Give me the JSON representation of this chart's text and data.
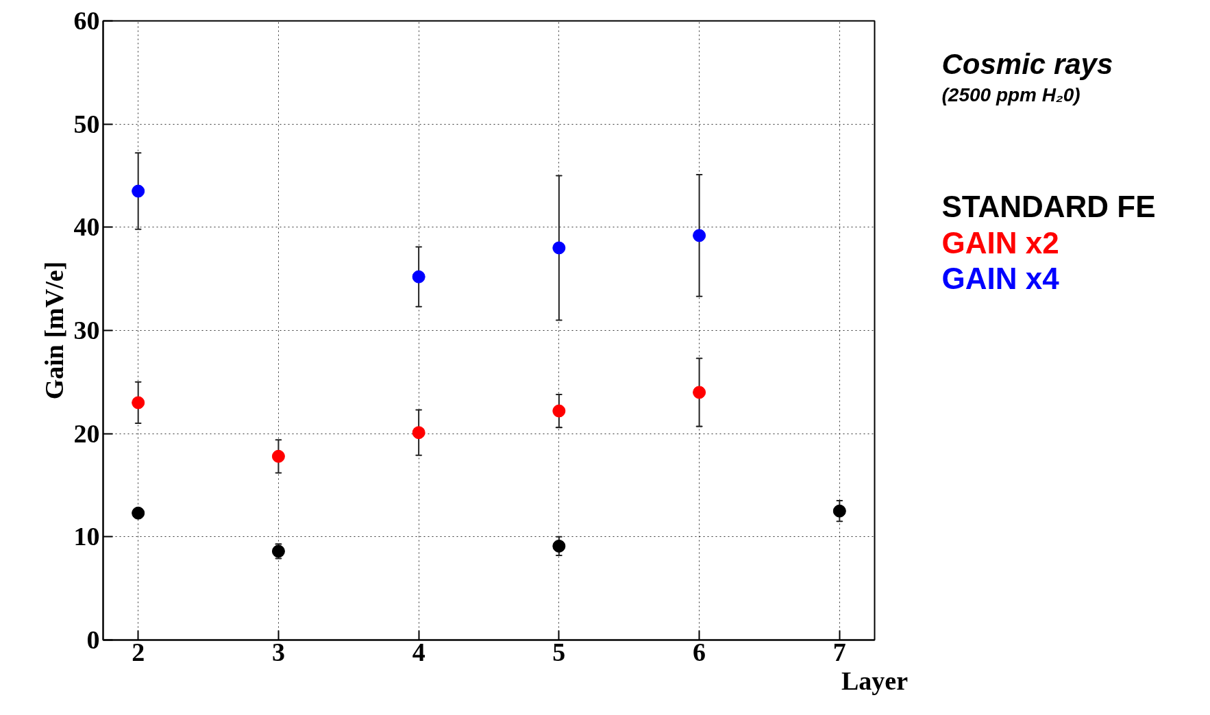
{
  "chart_data": {
    "type": "scatter",
    "title": "Cosmic rays",
    "subtitle": "(2500 ppm H₂0)",
    "xlabel": "Layer",
    "ylabel": "Gain [mV/e]",
    "xlim": [
      1.75,
      7.25
    ],
    "xticks": [
      2,
      3,
      4,
      5,
      6,
      7
    ],
    "ylim": [
      0,
      60
    ],
    "yticks": [
      0,
      10,
      20,
      30,
      40,
      50,
      60
    ],
    "grid": true,
    "legend": "right",
    "marker": "circle",
    "series": [
      {
        "name": "STANDARD FE",
        "color": "#000000",
        "x": [
          2,
          3,
          5,
          7
        ],
        "values": [
          12.3,
          8.6,
          9.1,
          12.5
        ],
        "errors": [
          null,
          0.7,
          0.9,
          1.0
        ]
      },
      {
        "name": "GAIN x2",
        "color": "#ff0000",
        "x": [
          2,
          3,
          4,
          5,
          6
        ],
        "values": [
          23.0,
          17.8,
          20.1,
          22.2,
          24.0
        ],
        "errors": [
          2.0,
          1.6,
          2.2,
          1.6,
          3.3
        ]
      },
      {
        "name": "GAIN x4",
        "color": "#0000ff",
        "x": [
          2,
          4,
          5,
          6
        ],
        "values": [
          43.5,
          35.2,
          38.0,
          39.2
        ],
        "errors": [
          3.7,
          2.9,
          7.0,
          5.9
        ]
      }
    ]
  }
}
